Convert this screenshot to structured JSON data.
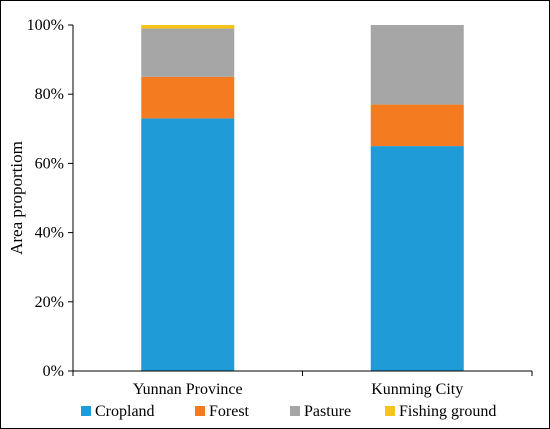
{
  "chart_data": {
    "type": "bar",
    "stacked": true,
    "percent": true,
    "categories": [
      "Yunnan Province",
      "Kunming City"
    ],
    "series": [
      {
        "name": "Cropland",
        "color": "#1f9bd7",
        "values": [
          73,
          65
        ]
      },
      {
        "name": "Forest",
        "color": "#f47b20",
        "values": [
          12,
          12
        ]
      },
      {
        "name": "Pasture",
        "color": "#a6a6a6",
        "values": [
          14,
          23
        ]
      },
      {
        "name": "Fishing ground",
        "color": "#f5c518",
        "values": [
          1,
          0
        ]
      }
    ],
    "ylabel": "Area proportiom",
    "yticks": [
      "0%",
      "20%",
      "40%",
      "60%",
      "80%",
      "100%"
    ],
    "ylim": [
      0,
      100
    ],
    "legend_position": "bottom",
    "grid": false
  }
}
